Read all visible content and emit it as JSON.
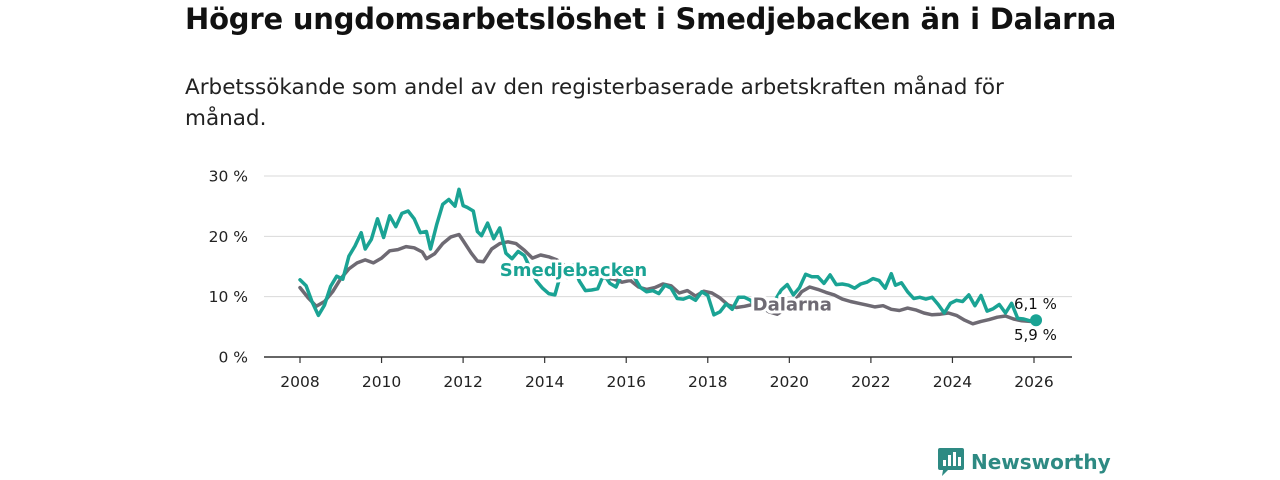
{
  "title": "Högre ungdomsarbetslöshet i Smedjebacken än i Dalarna",
  "subtitle": "Arbetssökande som andel av den registerbaserade arbetskraften månad för månad.",
  "brand": {
    "name": "Newsworthy",
    "icon": "newsworthy-logo-icon",
    "color": "#2e8a83"
  },
  "chart_data": {
    "type": "line",
    "title": "Högre ungdomsarbetslöshet i Smedjebacken än i Dalarna",
    "subtitle": "Arbetssökande som andel av den registerbaserade arbetskraften månad för månad.",
    "xlabel": "",
    "ylabel": "",
    "x_range": [
      2008,
      2026
    ],
    "ylim": [
      0,
      30
    ],
    "x_ticks": [
      2008,
      2010,
      2012,
      2014,
      2016,
      2018,
      2020,
      2022,
      2024,
      2026
    ],
    "x_tick_labels": [
      "2008",
      "2010",
      "2012",
      "2014",
      "2016",
      "2018",
      "2020",
      "2022",
      "2024",
      "2026"
    ],
    "y_ticks": [
      0,
      10,
      20,
      30
    ],
    "y_tick_labels": [
      "0 %",
      "10 %",
      "20 %",
      "30 %"
    ],
    "grid": true,
    "series": [
      {
        "name": "Dalarna",
        "color": "#6e6a73",
        "label_position": [
          2019.1,
          8.7
        ],
        "end_label": "5,9 %",
        "points": [
          [
            2008.0,
            11.5
          ],
          [
            2008.2,
            9.8
          ],
          [
            2008.4,
            8.4
          ],
          [
            2008.6,
            9.2
          ],
          [
            2008.8,
            10.8
          ],
          [
            2009.0,
            13.0
          ],
          [
            2009.2,
            14.6
          ],
          [
            2009.4,
            15.6
          ],
          [
            2009.6,
            16.1
          ],
          [
            2009.8,
            15.6
          ],
          [
            2010.0,
            16.4
          ],
          [
            2010.2,
            17.6
          ],
          [
            2010.4,
            17.8
          ],
          [
            2010.6,
            18.3
          ],
          [
            2010.8,
            18.1
          ],
          [
            2011.0,
            17.4
          ],
          [
            2011.1,
            16.3
          ],
          [
            2011.3,
            17.1
          ],
          [
            2011.5,
            18.8
          ],
          [
            2011.7,
            19.9
          ],
          [
            2011.9,
            20.3
          ],
          [
            2012.0,
            19.3
          ],
          [
            2012.2,
            17.2
          ],
          [
            2012.35,
            15.9
          ],
          [
            2012.5,
            15.8
          ],
          [
            2012.7,
            17.9
          ],
          [
            2012.9,
            18.8
          ],
          [
            2013.1,
            19.1
          ],
          [
            2013.3,
            18.8
          ],
          [
            2013.5,
            17.7
          ],
          [
            2013.7,
            16.4
          ],
          [
            2013.9,
            16.9
          ],
          [
            2014.1,
            16.6
          ],
          [
            2014.3,
            16.1
          ],
          [
            2014.5,
            15.1
          ],
          [
            2014.7,
            14.8
          ],
          [
            2014.9,
            14.2
          ],
          [
            2015.1,
            13.6
          ],
          [
            2015.3,
            13.3
          ],
          [
            2015.5,
            13.1
          ],
          [
            2015.7,
            12.9
          ],
          [
            2015.9,
            12.4
          ],
          [
            2016.1,
            12.7
          ],
          [
            2016.3,
            11.6
          ],
          [
            2016.5,
            11.2
          ],
          [
            2016.7,
            11.5
          ],
          [
            2016.9,
            12.1
          ],
          [
            2017.1,
            11.8
          ],
          [
            2017.3,
            10.6
          ],
          [
            2017.5,
            11.0
          ],
          [
            2017.7,
            10.1
          ],
          [
            2017.9,
            10.9
          ],
          [
            2018.1,
            10.6
          ],
          [
            2018.3,
            9.8
          ],
          [
            2018.5,
            8.6
          ],
          [
            2018.7,
            8.2
          ],
          [
            2018.9,
            8.4
          ],
          [
            2019.1,
            8.7
          ],
          [
            2019.3,
            8.3
          ],
          [
            2019.5,
            7.5
          ],
          [
            2019.7,
            7.1
          ],
          [
            2019.9,
            7.9
          ],
          [
            2020.1,
            9.0
          ],
          [
            2020.3,
            10.8
          ],
          [
            2020.5,
            11.6
          ],
          [
            2020.7,
            11.2
          ],
          [
            2020.9,
            10.7
          ],
          [
            2021.1,
            10.3
          ],
          [
            2021.3,
            9.6
          ],
          [
            2021.5,
            9.2
          ],
          [
            2021.7,
            8.9
          ],
          [
            2021.9,
            8.6
          ],
          [
            2022.1,
            8.3
          ],
          [
            2022.3,
            8.5
          ],
          [
            2022.5,
            7.9
          ],
          [
            2022.7,
            7.7
          ],
          [
            2022.9,
            8.1
          ],
          [
            2023.1,
            7.8
          ],
          [
            2023.3,
            7.3
          ],
          [
            2023.5,
            7.0
          ],
          [
            2023.7,
            7.1
          ],
          [
            2023.9,
            7.3
          ],
          [
            2024.1,
            6.9
          ],
          [
            2024.3,
            6.1
          ],
          [
            2024.5,
            5.5
          ],
          [
            2024.7,
            5.9
          ],
          [
            2024.9,
            6.2
          ],
          [
            2025.1,
            6.6
          ],
          [
            2025.3,
            6.8
          ],
          [
            2025.5,
            6.3
          ],
          [
            2025.7,
            6.0
          ],
          [
            2025.9,
            5.9
          ],
          [
            2026.05,
            5.9
          ]
        ]
      },
      {
        "name": "Smedjebacken",
        "color": "#1aa394",
        "label_position": [
          2012.9,
          14.4
        ],
        "end_label": "6,1 %",
        "points": [
          [
            2008.0,
            12.8
          ],
          [
            2008.15,
            11.8
          ],
          [
            2008.3,
            9.1
          ],
          [
            2008.45,
            6.9
          ],
          [
            2008.6,
            8.6
          ],
          [
            2008.75,
            11.7
          ],
          [
            2008.9,
            13.4
          ],
          [
            2009.05,
            12.9
          ],
          [
            2009.2,
            16.7
          ],
          [
            2009.35,
            18.4
          ],
          [
            2009.5,
            20.6
          ],
          [
            2009.6,
            17.9
          ],
          [
            2009.75,
            19.5
          ],
          [
            2009.9,
            22.9
          ],
          [
            2010.05,
            19.8
          ],
          [
            2010.2,
            23.4
          ],
          [
            2010.35,
            21.6
          ],
          [
            2010.5,
            23.8
          ],
          [
            2010.65,
            24.2
          ],
          [
            2010.8,
            22.9
          ],
          [
            2010.95,
            20.6
          ],
          [
            2011.1,
            20.8
          ],
          [
            2011.2,
            17.9
          ],
          [
            2011.35,
            21.9
          ],
          [
            2011.5,
            25.3
          ],
          [
            2011.65,
            26.1
          ],
          [
            2011.8,
            25.0
          ],
          [
            2011.9,
            27.8
          ],
          [
            2012.0,
            25.1
          ],
          [
            2012.1,
            24.8
          ],
          [
            2012.25,
            24.2
          ],
          [
            2012.35,
            20.8
          ],
          [
            2012.45,
            20.1
          ],
          [
            2012.6,
            22.2
          ],
          [
            2012.75,
            19.6
          ],
          [
            2012.9,
            21.4
          ],
          [
            2013.05,
            17.2
          ],
          [
            2013.2,
            16.3
          ],
          [
            2013.35,
            17.5
          ],
          [
            2013.5,
            16.8
          ],
          [
            2013.65,
            14.6
          ],
          [
            2013.8,
            12.6
          ],
          [
            2013.95,
            11.4
          ],
          [
            2014.1,
            10.5
          ],
          [
            2014.25,
            10.3
          ],
          [
            2014.4,
            13.9
          ],
          [
            2014.55,
            13.2
          ],
          [
            2014.7,
            15.2
          ],
          [
            2014.85,
            12.6
          ],
          [
            2015.0,
            11.0
          ],
          [
            2015.15,
            11.1
          ],
          [
            2015.3,
            11.3
          ],
          [
            2015.45,
            13.7
          ],
          [
            2015.6,
            12.2
          ],
          [
            2015.75,
            11.6
          ],
          [
            2015.9,
            13.8
          ],
          [
            2016.05,
            14.0
          ],
          [
            2016.2,
            13.2
          ],
          [
            2016.35,
            11.5
          ],
          [
            2016.5,
            10.8
          ],
          [
            2016.65,
            11.0
          ],
          [
            2016.8,
            10.5
          ],
          [
            2016.95,
            11.9
          ],
          [
            2017.1,
            11.4
          ],
          [
            2017.25,
            9.7
          ],
          [
            2017.4,
            9.6
          ],
          [
            2017.55,
            10.0
          ],
          [
            2017.7,
            9.4
          ],
          [
            2017.85,
            10.8
          ],
          [
            2018.0,
            10.2
          ],
          [
            2018.15,
            7.0
          ],
          [
            2018.3,
            7.5
          ],
          [
            2018.45,
            8.8
          ],
          [
            2018.6,
            7.9
          ],
          [
            2018.75,
            9.9
          ],
          [
            2018.9,
            9.9
          ],
          [
            2019.05,
            9.4
          ],
          [
            2019.2,
            8.0
          ],
          [
            2019.35,
            7.6
          ],
          [
            2019.5,
            8.1
          ],
          [
            2019.65,
            9.4
          ],
          [
            2019.8,
            11.1
          ],
          [
            2019.95,
            12.0
          ],
          [
            2020.1,
            10.3
          ],
          [
            2020.25,
            11.5
          ],
          [
            2020.4,
            13.7
          ],
          [
            2020.55,
            13.3
          ],
          [
            2020.7,
            13.3
          ],
          [
            2020.85,
            12.2
          ],
          [
            2021.0,
            13.6
          ],
          [
            2021.15,
            12.0
          ],
          [
            2021.3,
            12.1
          ],
          [
            2021.45,
            11.9
          ],
          [
            2021.6,
            11.4
          ],
          [
            2021.75,
            12.1
          ],
          [
            2021.9,
            12.4
          ],
          [
            2022.05,
            13.0
          ],
          [
            2022.2,
            12.7
          ],
          [
            2022.35,
            11.4
          ],
          [
            2022.5,
            13.8
          ],
          [
            2022.6,
            11.9
          ],
          [
            2022.75,
            12.3
          ],
          [
            2022.9,
            10.8
          ],
          [
            2023.05,
            9.7
          ],
          [
            2023.2,
            9.9
          ],
          [
            2023.35,
            9.6
          ],
          [
            2023.5,
            9.9
          ],
          [
            2023.65,
            8.7
          ],
          [
            2023.8,
            7.3
          ],
          [
            2023.95,
            8.9
          ],
          [
            2024.1,
            9.4
          ],
          [
            2024.25,
            9.2
          ],
          [
            2024.4,
            10.3
          ],
          [
            2024.55,
            8.5
          ],
          [
            2024.7,
            10.2
          ],
          [
            2024.85,
            7.6
          ],
          [
            2025.0,
            8.0
          ],
          [
            2025.15,
            8.7
          ],
          [
            2025.3,
            7.3
          ],
          [
            2025.45,
            8.9
          ],
          [
            2025.6,
            6.4
          ],
          [
            2025.75,
            6.3
          ],
          [
            2025.9,
            6.0
          ],
          [
            2026.05,
            6.1
          ]
        ]
      }
    ]
  }
}
